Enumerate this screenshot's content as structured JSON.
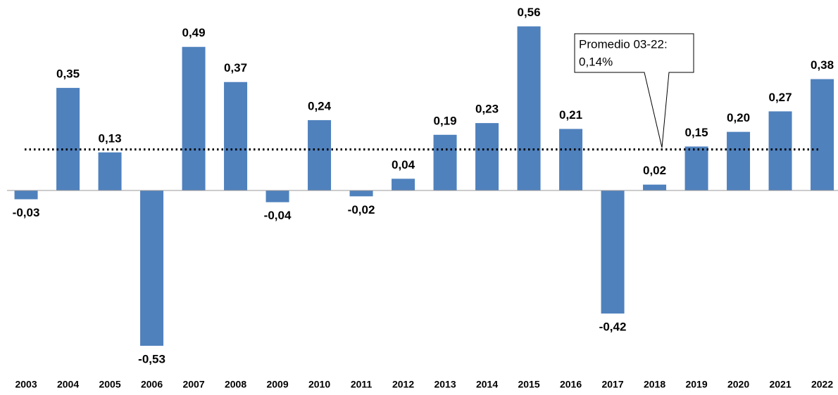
{
  "chart_data": {
    "type": "bar",
    "categories": [
      "2003",
      "2004",
      "2005",
      "2006",
      "2007",
      "2008",
      "2009",
      "2010",
      "2011",
      "2012",
      "2013",
      "2014",
      "2015",
      "2016",
      "2017",
      "2018",
      "2019",
      "2020",
      "2021",
      "2022"
    ],
    "values": [
      -0.03,
      0.35,
      0.13,
      -0.53,
      0.49,
      0.37,
      -0.04,
      0.24,
      -0.02,
      0.04,
      0.19,
      0.23,
      0.56,
      0.21,
      -0.42,
      0.02,
      0.15,
      0.2,
      0.27,
      0.38
    ],
    "value_labels": [
      "-0,03",
      "0,35",
      "0,13",
      "-0,53",
      "0,49",
      "0,37",
      "-0,04",
      "0,24",
      "-0,02",
      "0,04",
      "0,19",
      "0,23",
      "0,56",
      "0,21",
      "-0,42",
      "0,02",
      "0,15",
      "0,20",
      "0,27",
      "0,38"
    ],
    "color": "#4f81bd",
    "ylim": [
      -0.65,
      0.65
    ],
    "annotation": {
      "text": "Promedio 03-22:",
      "value": 0.14,
      "value_label": "0,14%"
    }
  }
}
